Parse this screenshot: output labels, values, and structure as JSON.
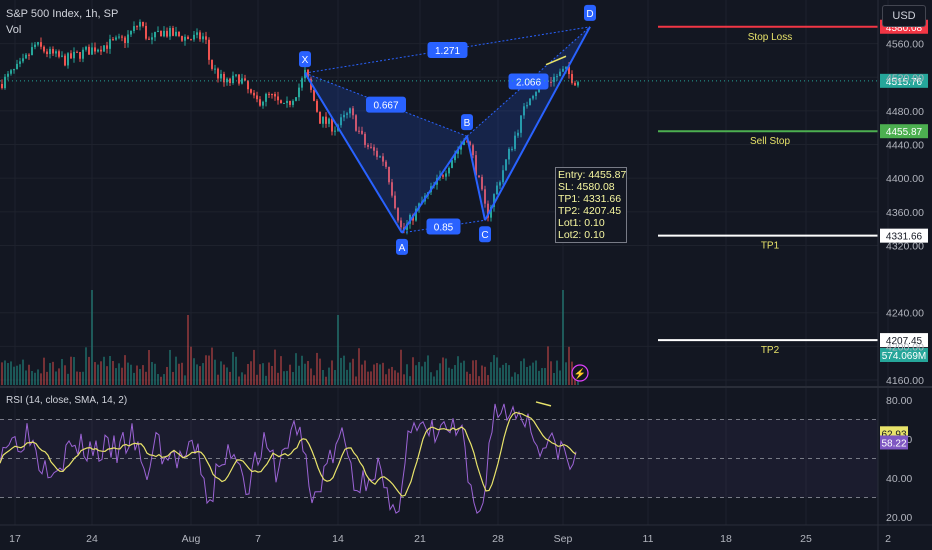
{
  "header": {
    "title": "S&P 500 Index, 1h, SP",
    "volume_label": "Vol",
    "currency": "USD"
  },
  "colors": {
    "background": "#131722",
    "up": "#26a69a",
    "down": "#ef5350",
    "pattern": "#2962ff",
    "stop_loss": "#f23645",
    "sell_stop": "#4caf50",
    "tp": "#ffffff",
    "rsi": "#9c64d6",
    "rsi_ma": "#e8e36a"
  },
  "chart_data": {
    "type": "candlestick",
    "symbol": "S&P 500 Index",
    "interval": "1h",
    "y_axis": {
      "ticks": [
        "4560.00",
        "4520.00",
        "4480.00",
        "4440.00",
        "4400.00",
        "4360.00",
        "4320.00",
        "4240.00",
        "4200.00",
        "4160.00"
      ],
      "range": [
        4160,
        4600
      ]
    },
    "x_axis": {
      "ticks": [
        "17",
        "24",
        "Aug",
        "7",
        "14",
        "21",
        "28",
        "Sep",
        "11",
        "18",
        "25",
        "2"
      ]
    },
    "price_path": [
      [
        0,
        4512
      ],
      [
        12,
        4525
      ],
      [
        22,
        4535
      ],
      [
        35,
        4558
      ],
      [
        50,
        4548
      ],
      [
        65,
        4540
      ],
      [
        80,
        4548
      ],
      [
        95,
        4555
      ],
      [
        110,
        4560
      ],
      [
        125,
        4565
      ],
      [
        140,
        4585
      ],
      [
        150,
        4560
      ],
      [
        160,
        4575
      ],
      [
        175,
        4570
      ],
      [
        190,
        4566
      ],
      [
        205,
        4568
      ],
      [
        210,
        4535
      ],
      [
        225,
        4512
      ],
      [
        240,
        4520
      ],
      [
        255,
        4490
      ],
      [
        270,
        4498
      ],
      [
        285,
        4482
      ],
      [
        300,
        4510
      ],
      [
        305,
        4525
      ],
      [
        320,
        4470
      ],
      [
        335,
        4460
      ],
      [
        350,
        4478
      ],
      [
        365,
        4440
      ],
      [
        385,
        4420
      ],
      [
        402,
        4335
      ],
      [
        420,
        4368
      ],
      [
        440,
        4400
      ],
      [
        455,
        4430
      ],
      [
        467,
        4450
      ],
      [
        475,
        4415
      ],
      [
        487,
        4355
      ],
      [
        500,
        4400
      ],
      [
        515,
        4450
      ],
      [
        530,
        4500
      ],
      [
        545,
        4515
      ],
      [
        555,
        4520
      ],
      [
        565,
        4528
      ],
      [
        575,
        4516
      ],
      [
        580,
        4516
      ]
    ],
    "last_price": "4515.76",
    "pattern": {
      "name": "harmonic",
      "points": [
        {
          "label": "X",
          "date_index": 305,
          "price": 4525
        },
        {
          "label": "A",
          "date_index": 402,
          "price": 4335
        },
        {
          "label": "B",
          "date_index": 467,
          "price": 4450
        },
        {
          "label": "C",
          "date_index": 485,
          "price": 4350
        },
        {
          "label": "D",
          "date_index": 590,
          "price": 4580
        }
      ],
      "ratios": [
        {
          "label": "1.271",
          "between": [
            "X",
            "D"
          ]
        },
        {
          "label": "0.667",
          "between": [
            "X",
            "B"
          ]
        },
        {
          "label": "0.85",
          "between": [
            "A",
            "C"
          ]
        },
        {
          "label": "2.066",
          "between": [
            "B",
            "D"
          ]
        }
      ]
    },
    "levels": [
      {
        "name": "Stop Loss",
        "price": 4580.08,
        "label": "4580.08"
      },
      {
        "name": "Sell Stop",
        "price": 4455.87,
        "label": "4455.87"
      },
      {
        "name": "TP1",
        "price": 4331.66,
        "label": "4331.66"
      },
      {
        "name": "TP2",
        "price": 4207.45,
        "label": "4207.45"
      }
    ],
    "trade_info": [
      "Entry: 4455.87",
      "SL: 4580.08",
      "TP1: 4331.66",
      "TP2: 4207.45",
      "Lot1: 0.10",
      "Lot2: 0.10"
    ],
    "volume": {
      "last_label": "574.069M"
    },
    "rsi": {
      "label": "RSI (14, close, SMA, 14, 2)",
      "ticks": [
        "80.00",
        "60.00",
        "40.00",
        "20.00"
      ],
      "bands": [
        70,
        50,
        30
      ],
      "value": "58.22",
      "ma_value": "62.93"
    }
  }
}
